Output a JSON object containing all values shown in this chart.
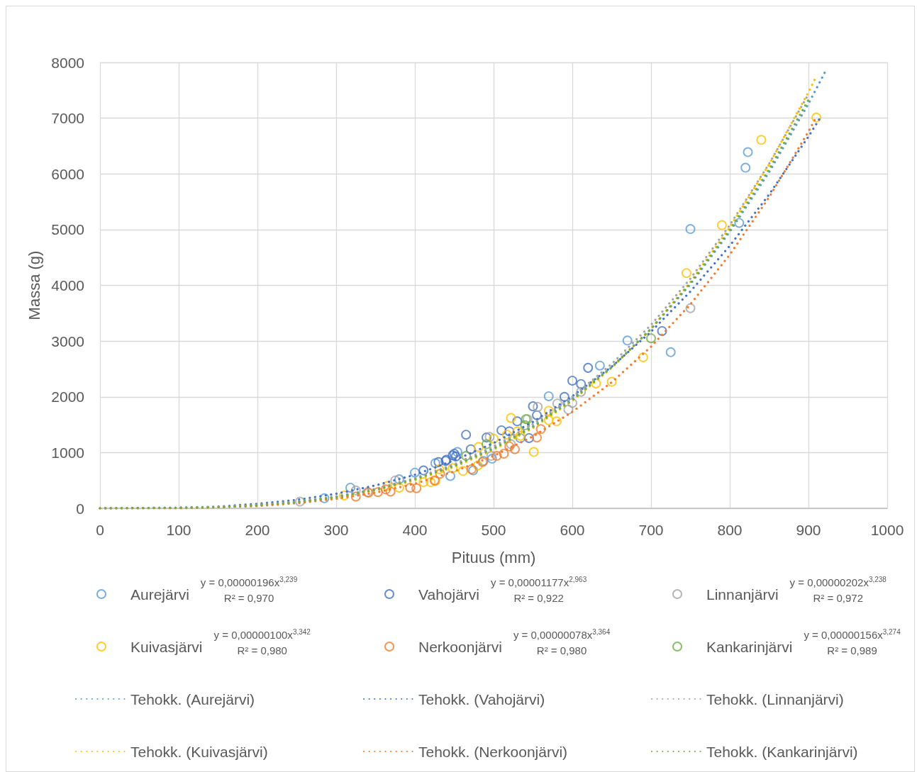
{
  "chart_data": {
    "type": "scatter",
    "xlabel": "Pituus (mm)",
    "ylabel": "Massa (g)",
    "xlim": [
      0,
      1000
    ],
    "xticks": [
      0,
      100,
      200,
      300,
      400,
      500,
      600,
      700,
      800,
      900,
      1000
    ],
    "ylim": [
      0,
      8000
    ],
    "yticks": [
      0,
      1000,
      2000,
      3000,
      4000,
      5000,
      6000,
      7000,
      8000
    ],
    "grid": true,
    "legend": "bottom",
    "marker": "circle",
    "line_style": "dotted",
    "annotations": [
      "y = 0,00000196x$^{3,239}$",
      "R² = 0,970",
      "y = 0,00001177x$^{2,963}$",
      "R² = 0,922",
      "y = 0,00000202x$^{3,238}$",
      "R² = 0,972",
      "y = 0,00000100x$^{3,342}$",
      "R² = 0,980",
      "y = 0,00000078x$^{3,364}$",
      "R² = 0,980",
      "y = 0,00000156x$^{3,274}$",
      "R² = 0,989"
    ],
    "series": [
      {
        "name": "Aurejärvi",
        "color": "#5b9bd5",
        "x": [
          285,
          318,
          380,
          400,
          426,
          445,
          454,
          474,
          487,
          498,
          534,
          570,
          635,
          670,
          725,
          750,
          812,
          820,
          823
        ],
        "values": [
          180,
          370,
          520,
          640,
          810,
          580,
          1010,
          680,
          850,
          890,
          1260,
          2010,
          2560,
          3010,
          2800,
          5010,
          5120,
          6110,
          6390
        ]
      },
      {
        "name": "Vahojärvi",
        "color": "#4472c4",
        "x": [
          411,
          430,
          439,
          440,
          448,
          450,
          452,
          465,
          471,
          491,
          510,
          520,
          530,
          545,
          550,
          555,
          590,
          600,
          611,
          620,
          714
        ],
        "values": [
          680,
          830,
          850,
          870,
          950,
          980,
          930,
          1320,
          1060,
          1270,
          1400,
          1380,
          1560,
          1260,
          1830,
          1670,
          2000,
          2290,
          2230,
          2520,
          3180
        ]
      },
      {
        "name": "Linnanjärvi",
        "color": "#a5a5a5",
        "x": [
          254,
          325,
          340,
          375,
          495,
          497,
          522,
          543,
          556,
          581,
          595,
          600,
          611,
          750
        ],
        "values": [
          120,
          320,
          290,
          500,
          1280,
          940,
          1150,
          1600,
          1820,
          1880,
          1770,
          1890,
          2090,
          3590
        ]
      },
      {
        "name": "Kuivasjärvi",
        "color": "#ffc000",
        "x": [
          310,
          365,
          380,
          411,
          420,
          426,
          431,
          448,
          461,
          480,
          481,
          500,
          517,
          522,
          530,
          534,
          551,
          570,
          570,
          580,
          630,
          650,
          690,
          745,
          790,
          840,
          910
        ],
        "values": [
          230,
          400,
          370,
          470,
          470,
          490,
          700,
          720,
          670,
          770,
          1100,
          1250,
          1320,
          1620,
          1380,
          1300,
          1010,
          1750,
          1580,
          1560,
          2240,
          2270,
          2710,
          4220,
          5080,
          6610,
          7010
        ]
      },
      {
        "name": "Nerkoonjärvi",
        "color": "#ed7d31",
        "x": [
          325,
          341,
          353,
          363,
          369,
          394,
          402,
          425,
          432,
          472,
          486,
          504,
          513,
          520,
          527,
          555,
          560
        ],
        "values": [
          210,
          280,
          290,
          340,
          300,
          370,
          360,
          500,
          620,
          700,
          830,
          940,
          980,
          1110,
          1060,
          1270,
          1420
        ]
      },
      {
        "name": "Kankarinjärvi",
        "color": "#70ad47",
        "x": [
          465,
          491,
          540,
          541,
          700
        ],
        "values": [
          940,
          1150,
          1490,
          1600,
          3050
        ]
      },
      {
        "name": "Tehokk. (Aurejärvi)",
        "type": "line",
        "marker": "none",
        "color": "#5b9bd5",
        "x": [
          0,
          100,
          150,
          200,
          250,
          300,
          350,
          400,
          450,
          500,
          550,
          600,
          650,
          700,
          750,
          800,
          850,
          900,
          923
        ],
        "values": [
          0,
          10,
          20,
          60,
          110,
          210,
          340,
          530,
          770,
          1080,
          1470,
          1970,
          2530,
          3220,
          4020,
          4960,
          6030,
          7260,
          7880
        ]
      },
      {
        "name": "Tehokk. (Vahojärvi)",
        "type": "line",
        "marker": "none",
        "color": "#4472c4",
        "x": [
          0,
          100,
          150,
          200,
          250,
          300,
          350,
          400,
          450,
          500,
          550,
          600,
          650,
          700,
          750,
          800,
          850,
          900,
          915
        ],
        "values": [
          0,
          10,
          30,
          80,
          150,
          260,
          410,
          600,
          860,
          1170,
          1550,
          2010,
          2540,
          3170,
          3890,
          4710,
          5630,
          6670,
          7010
        ]
      },
      {
        "name": "Tehokk. (Linnanjärvi)",
        "type": "line",
        "marker": "none",
        "color": "#a5a5a5",
        "x": [
          0,
          100,
          150,
          200,
          250,
          300,
          350,
          400,
          450,
          500,
          550,
          600,
          650,
          700,
          750,
          800,
          850,
          900
        ],
        "values": [
          0,
          10,
          20,
          60,
          120,
          210,
          350,
          540,
          790,
          1110,
          1510,
          2000,
          2590,
          3290,
          4120,
          5080,
          6180,
          7430
        ]
      },
      {
        "name": "Tehokk. (Kuivasjärvi)",
        "type": "line",
        "marker": "none",
        "color": "#ffc000",
        "x": [
          0,
          100,
          150,
          200,
          250,
          300,
          350,
          400,
          450,
          500,
          550,
          600,
          650,
          700,
          750,
          800,
          850,
          900,
          910
        ],
        "values": [
          0,
          0,
          20,
          50,
          100,
          190,
          320,
          500,
          740,
          1050,
          1440,
          1930,
          2520,
          3220,
          4060,
          5040,
          6170,
          7470,
          7750
        ]
      },
      {
        "name": "Tehokk. (Nerkoonjärvi)",
        "type": "line",
        "marker": "none",
        "color": "#ed7d31",
        "x": [
          0,
          100,
          150,
          200,
          250,
          300,
          350,
          400,
          450,
          500,
          550,
          600,
          650,
          700,
          750,
          800,
          850,
          900,
          908
        ],
        "values": [
          0,
          0,
          20,
          40,
          90,
          170,
          280,
          440,
          660,
          940,
          1290,
          1730,
          2260,
          2900,
          3660,
          4550,
          5580,
          6760,
          6970
        ]
      },
      {
        "name": "Tehokk. (Kankarinjärvi)",
        "type": "line",
        "marker": "none",
        "color": "#70ad47",
        "x": [
          0,
          100,
          150,
          200,
          250,
          300,
          350,
          400,
          450,
          500,
          550,
          600,
          650,
          700,
          750,
          800,
          850,
          900
        ],
        "values": [
          0,
          10,
          20,
          50,
          110,
          200,
          330,
          520,
          760,
          1070,
          1460,
          1940,
          2530,
          3220,
          4040,
          4990,
          6080,
          7330
        ]
      }
    ]
  }
}
